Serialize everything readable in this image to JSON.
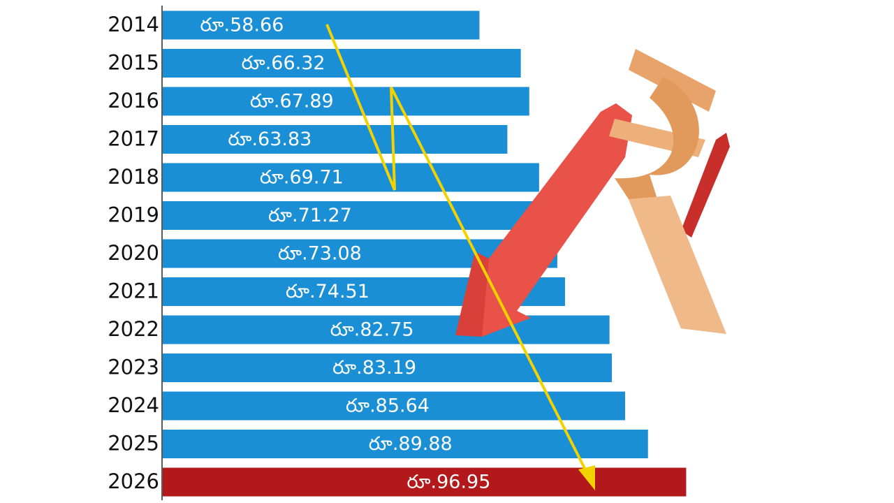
{
  "chart_data": {
    "type": "bar",
    "orientation": "horizontal",
    "categories": [
      "2014",
      "2015",
      "2016",
      "2017",
      "2018",
      "2019",
      "2020",
      "2021",
      "2022",
      "2023",
      "2024",
      "2025",
      "2026"
    ],
    "values": [
      58.66,
      66.32,
      67.89,
      63.83,
      69.71,
      71.27,
      73.08,
      74.51,
      82.75,
      83.19,
      85.64,
      89.88,
      96.95
    ],
    "value_labels": [
      "రూ.58.66",
      "రూ.66.32",
      "రూ.67.89",
      "రూ.63.83",
      "రూ.69.71",
      "రూ.71.27",
      "రూ.73.08",
      "రూ.74.51",
      "రూ.82.75",
      "రూ.83.19",
      "రూ.85.64",
      "రూ.89.88",
      "రూ.96.95"
    ],
    "colors": [
      "#1a8fd6",
      "#1a8fd6",
      "#1a8fd6",
      "#1a8fd6",
      "#1a8fd6",
      "#1a8fd6",
      "#1a8fd6",
      "#1a8fd6",
      "#1a8fd6",
      "#1a8fd6",
      "#1a8fd6",
      "#1a8fd6",
      "#b3191b"
    ]
  }
}
